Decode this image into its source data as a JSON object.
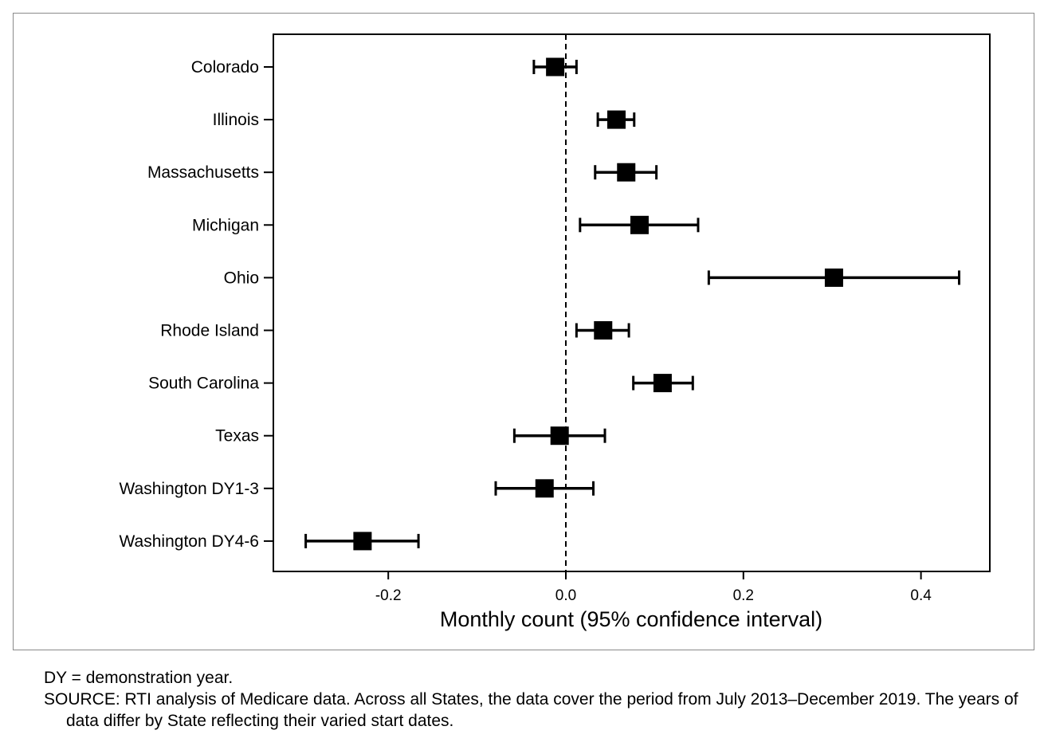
{
  "chart_data": {
    "type": "forest",
    "xlabel": "Monthly count (95% confidence interval)",
    "xlim": [
      -0.33,
      0.48
    ],
    "xticks": [
      -0.2,
      0.0,
      0.2,
      0.4
    ],
    "xtick_labels": [
      "-0.2",
      "0.0",
      "0.2",
      "0.4"
    ],
    "reference_line": 0.0,
    "categories": [
      "Colorado",
      "Illinois",
      "Massachusetts",
      "Michigan",
      "Ohio",
      "Rhode Island",
      "South Carolina",
      "Texas",
      "Washington DY1-3",
      "Washington DY4-6"
    ],
    "estimates": [
      -0.012,
      0.057,
      0.068,
      0.083,
      0.302,
      0.042,
      0.109,
      -0.007,
      -0.024,
      -0.229
    ],
    "ci_lower": [
      -0.036,
      0.036,
      0.033,
      0.016,
      0.161,
      0.012,
      0.076,
      -0.058,
      -0.079,
      -0.293
    ],
    "ci_upper": [
      0.012,
      0.077,
      0.102,
      0.149,
      0.443,
      0.071,
      0.143,
      0.044,
      0.031,
      -0.166
    ]
  },
  "notes": {
    "dy_note": "DY = demonstration year.",
    "source": "SOURCE: RTI analysis of Medicare data. Across all States, the data cover the period from July 2013–December 2019. The years of data differ by State reflecting their varied start dates."
  }
}
